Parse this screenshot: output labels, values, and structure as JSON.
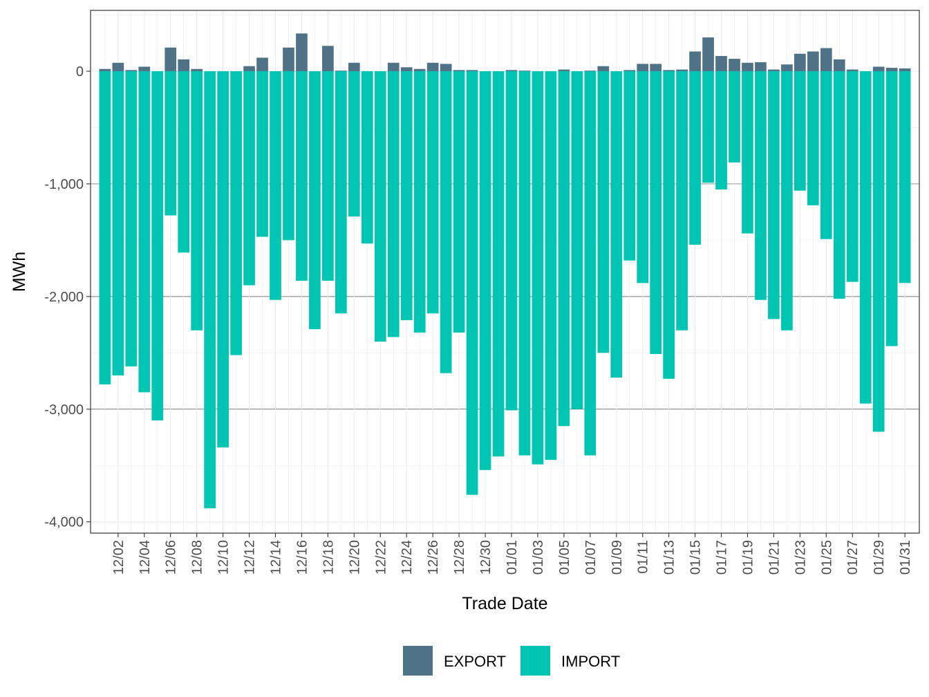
{
  "chart_data": {
    "type": "bar",
    "stacked": true,
    "xlabel": "Trade Date",
    "ylabel": "MWh",
    "ylim": [
      -4100,
      540
    ],
    "yticks": [
      0,
      -1000,
      -2000,
      -3000,
      -4000
    ],
    "ytick_labels": [
      "0",
      "-1,000",
      "-2,000",
      "-3,000",
      "-4,000"
    ],
    "categories": [
      "12/01",
      "12/02",
      "12/03",
      "12/04",
      "12/05",
      "12/06",
      "12/07",
      "12/08",
      "12/09",
      "12/10",
      "12/11",
      "12/12",
      "12/13",
      "12/14",
      "12/15",
      "12/16",
      "12/17",
      "12/18",
      "12/19",
      "12/20",
      "12/21",
      "12/22",
      "12/23",
      "12/24",
      "12/25",
      "12/26",
      "12/27",
      "12/28",
      "12/29",
      "12/30",
      "12/31",
      "01/01",
      "01/02",
      "01/03",
      "01/04",
      "01/05",
      "01/06",
      "01/07",
      "01/08",
      "01/09",
      "01/10",
      "01/11",
      "01/12",
      "01/13",
      "01/14",
      "01/15",
      "01/16",
      "01/17",
      "01/18",
      "01/19",
      "01/20",
      "01/21",
      "01/22",
      "01/23",
      "01/24",
      "01/25",
      "01/26",
      "01/27",
      "01/28",
      "01/29",
      "01/30",
      "01/31"
    ],
    "xtick_labels": [
      "12/02",
      "12/04",
      "12/06",
      "12/08",
      "12/10",
      "12/12",
      "12/14",
      "12/16",
      "12/18",
      "12/20",
      "12/22",
      "12/24",
      "12/26",
      "12/28",
      "12/30",
      "01/01",
      "01/03",
      "01/05",
      "01/07",
      "01/09",
      "01/11",
      "01/13",
      "01/15",
      "01/17",
      "01/19",
      "01/21",
      "01/23",
      "01/25",
      "01/27",
      "01/29",
      "01/31"
    ],
    "series": [
      {
        "name": "EXPORT",
        "color": "#4f7287",
        "values": [
          20,
          75,
          10,
          40,
          0,
          210,
          105,
          20,
          0,
          0,
          0,
          45,
          120,
          0,
          210,
          335,
          0,
          225,
          5,
          75,
          0,
          0,
          75,
          35,
          20,
          75,
          65,
          10,
          10,
          0,
          0,
          10,
          5,
          0,
          0,
          15,
          0,
          5,
          45,
          0,
          10,
          65,
          65,
          10,
          15,
          175,
          300,
          135,
          110,
          75,
          80,
          15,
          60,
          155,
          175,
          205,
          105,
          15,
          0,
          40,
          30,
          25
        ]
      },
      {
        "name": "IMPORT",
        "color": "#00c5b2",
        "values": [
          -2780,
          -2700,
          -2620,
          -2850,
          -3100,
          -1280,
          -1610,
          -2300,
          -3880,
          -3340,
          -2520,
          -1900,
          -1470,
          -2030,
          -1500,
          -1860,
          -2290,
          -1860,
          -2150,
          -1290,
          -1530,
          -2400,
          -2360,
          -2210,
          -2320,
          -2150,
          -2680,
          -2320,
          -3760,
          -3540,
          -3420,
          -3010,
          -3410,
          -3490,
          -3450,
          -3150,
          -3000,
          -3410,
          -2500,
          -2720,
          -1680,
          -1880,
          -2510,
          -2730,
          -2300,
          -1540,
          -990,
          -1050,
          -810,
          -1440,
          -2030,
          -2200,
          -2300,
          -1060,
          -1190,
          -1490,
          -2020,
          -1870,
          -2950,
          -3200,
          -2440,
          -1880
        ]
      }
    ],
    "legend": {
      "position": "bottom",
      "entries": [
        "EXPORT",
        "IMPORT"
      ]
    },
    "grid": true
  }
}
